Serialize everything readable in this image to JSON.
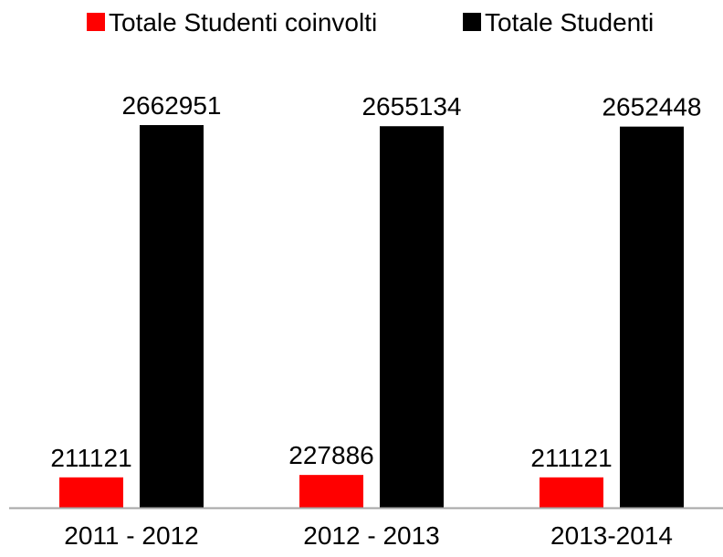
{
  "chart_data": {
    "type": "bar",
    "title": "",
    "xlabel": "",
    "ylabel": "",
    "categories": [
      "2011 - 2012",
      "2012 - 2013",
      "2013-2014"
    ],
    "series": [
      {
        "name": "Totale Studenti coinvolti",
        "color": "#ff0000",
        "values": [
          211121,
          227886,
          211121
        ]
      },
      {
        "name": "Totale Studenti",
        "color": "#000000",
        "values": [
          2662951,
          2655134,
          2652448
        ]
      }
    ],
    "ylim": [
      0,
      2662951
    ],
    "grid": false,
    "legend_position": "top",
    "axis_color": "#a6a6a6"
  }
}
